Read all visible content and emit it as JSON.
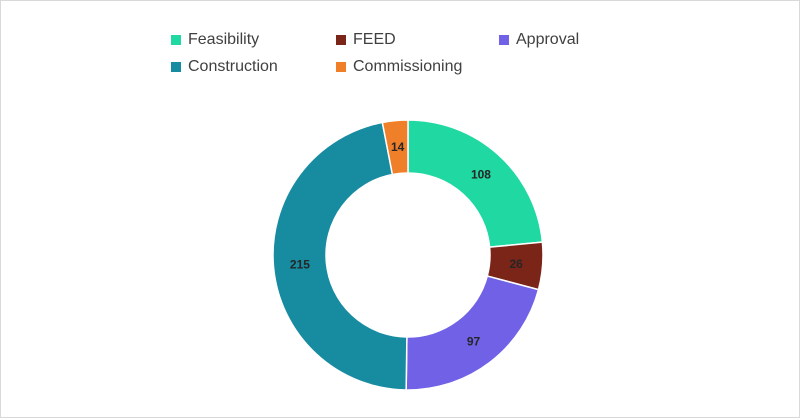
{
  "chart_data": {
    "type": "pie",
    "subtype": "donut",
    "title": "",
    "legend_position": "top",
    "categories": [
      "Feasibility",
      "FEED",
      "Approval",
      "Construction",
      "Commissioning"
    ],
    "values": [
      108,
      26,
      97,
      215,
      14
    ],
    "colors": [
      "#1fd8a2",
      "#7b2418",
      "#7161e6",
      "#178ba0",
      "#f07f2a"
    ],
    "data_labels": [
      "108",
      "26",
      "97",
      "215",
      "14"
    ]
  }
}
